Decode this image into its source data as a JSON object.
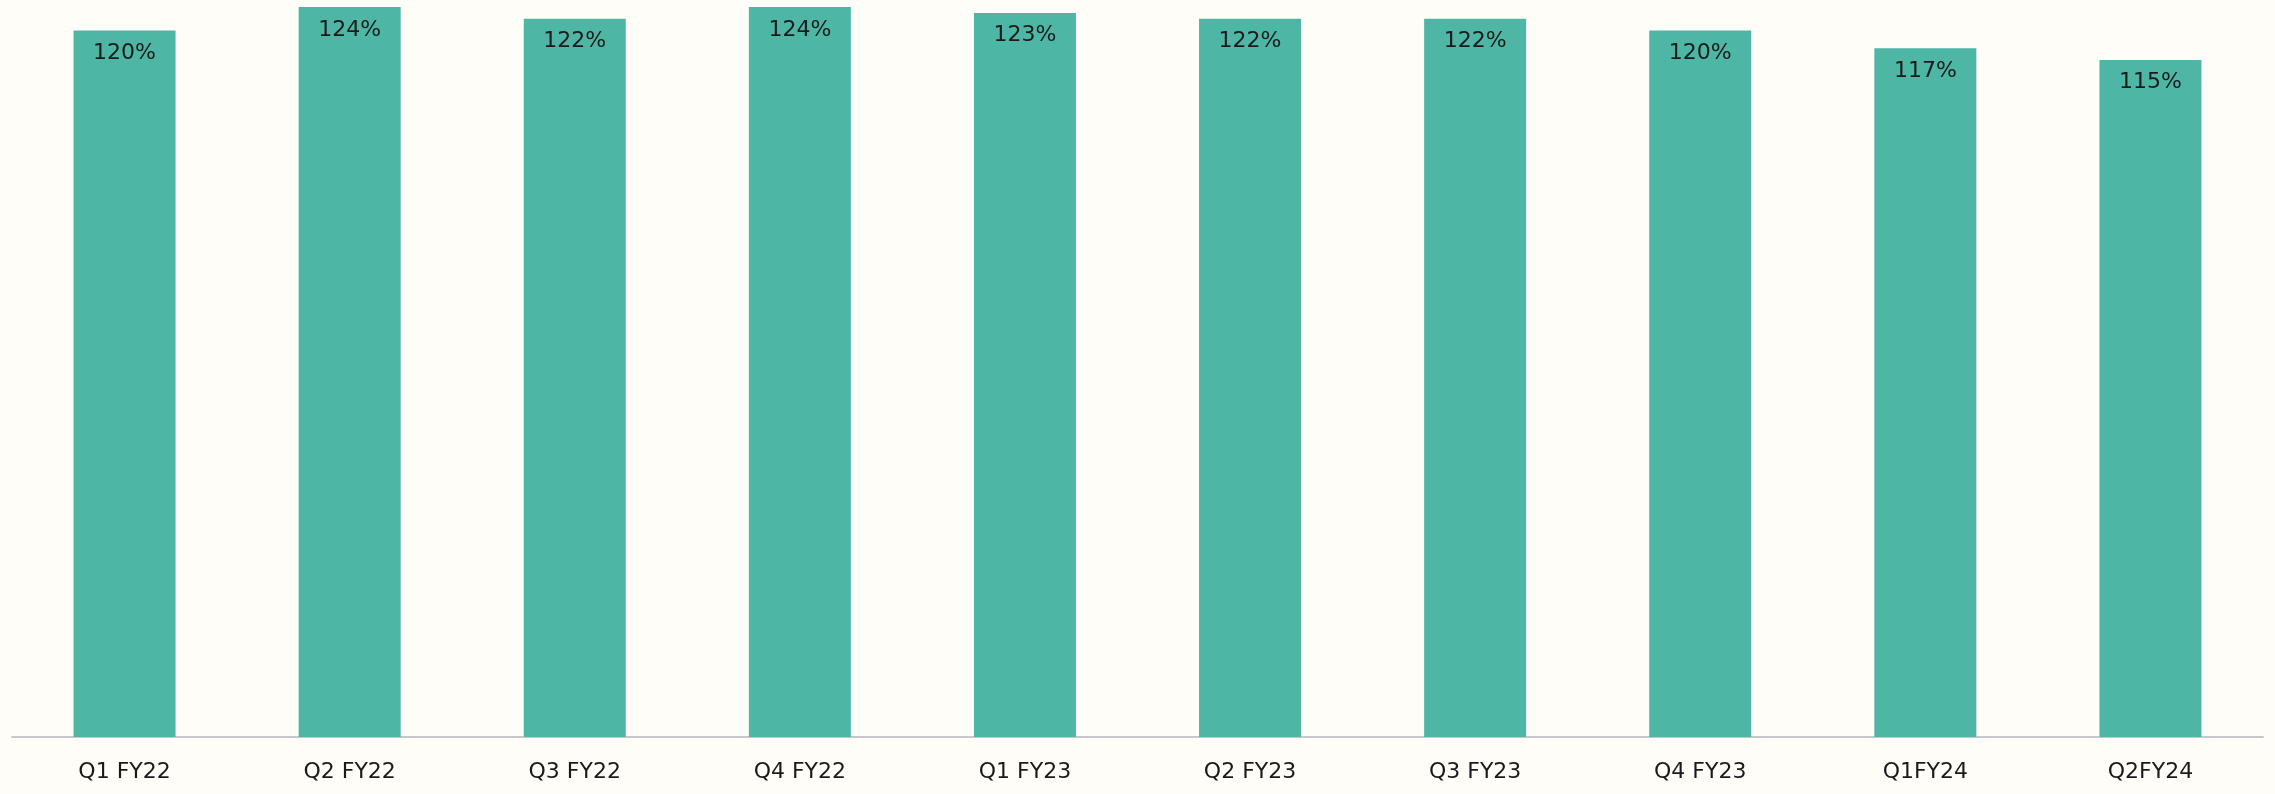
{
  "chart_data": {
    "type": "bar",
    "categories": [
      "Q1 FY22",
      "Q2 FY22",
      "Q3 FY22",
      "Q4 FY22",
      "Q1 FY23",
      "Q2 FY23",
      "Q3 FY23",
      "Q4 FY23",
      "Q1FY24",
      "Q2FY24"
    ],
    "values": [
      120,
      124,
      122,
      124,
      123,
      122,
      122,
      120,
      117,
      115
    ],
    "value_labels": [
      "120%",
      "124%",
      "122%",
      "124%",
      "123%",
      "122%",
      "122%",
      "120%",
      "117%",
      "115%"
    ],
    "color": "#4db6a4"
  }
}
